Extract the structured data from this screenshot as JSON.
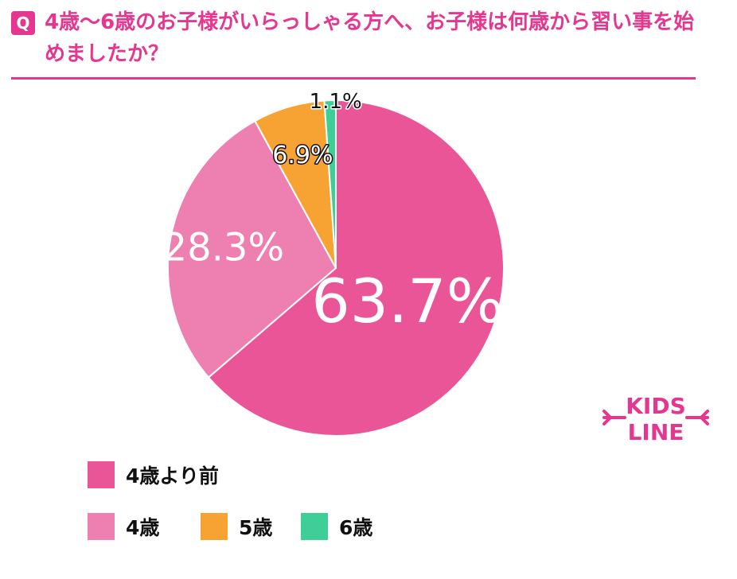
{
  "header": {
    "q_label": "Q",
    "question": "4歳〜6歳のお子様がいらっしゃる方へ、お子様は何歳から習い事を始めましたか？"
  },
  "colors": {
    "accent": "#e5378f",
    "text": "#e5378f"
  },
  "logo": {
    "line1": "KIDS",
    "line2": "LINE"
  },
  "chart_data": {
    "type": "pie",
    "categories": [
      "4歳より前",
      "4歳",
      "5歳",
      "6歳"
    ],
    "values": [
      63.7,
      28.3,
      6.9,
      1.1
    ],
    "labels": [
      "63.7%",
      "28.3%",
      "6.9%",
      "1.1%"
    ],
    "colors": [
      "#ea5598",
      "#ed7fb1",
      "#f7a334",
      "#3ecf98"
    ],
    "legend": "bottom",
    "title": ""
  }
}
